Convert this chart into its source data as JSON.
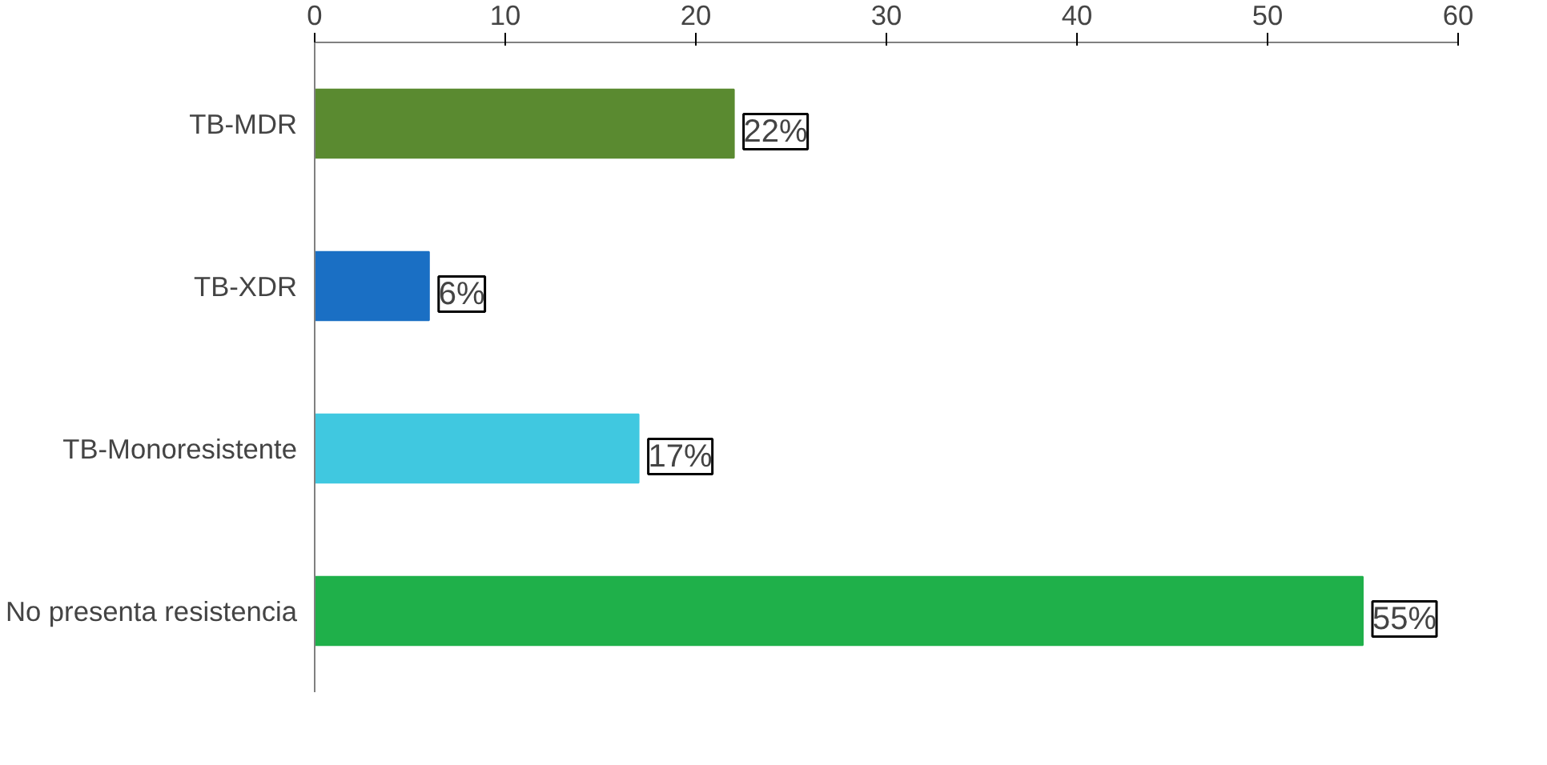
{
  "chart_data": {
    "type": "bar",
    "orientation": "horizontal",
    "categories": [
      "TB-MDR",
      "TB-XDR",
      "TB-Monoresistente",
      "No presenta resistencia"
    ],
    "values": [
      22,
      6,
      17,
      55
    ],
    "colors": [
      "#5a8a30",
      "#1a6fc4",
      "#40c8e0",
      "#1fb04a"
    ],
    "value_labels": [
      "22%",
      "6%",
      "17%",
      "55%"
    ],
    "xlim": [
      0,
      60
    ],
    "xticks": [
      0,
      10,
      20,
      30,
      40,
      50,
      60
    ],
    "grid": false
  }
}
